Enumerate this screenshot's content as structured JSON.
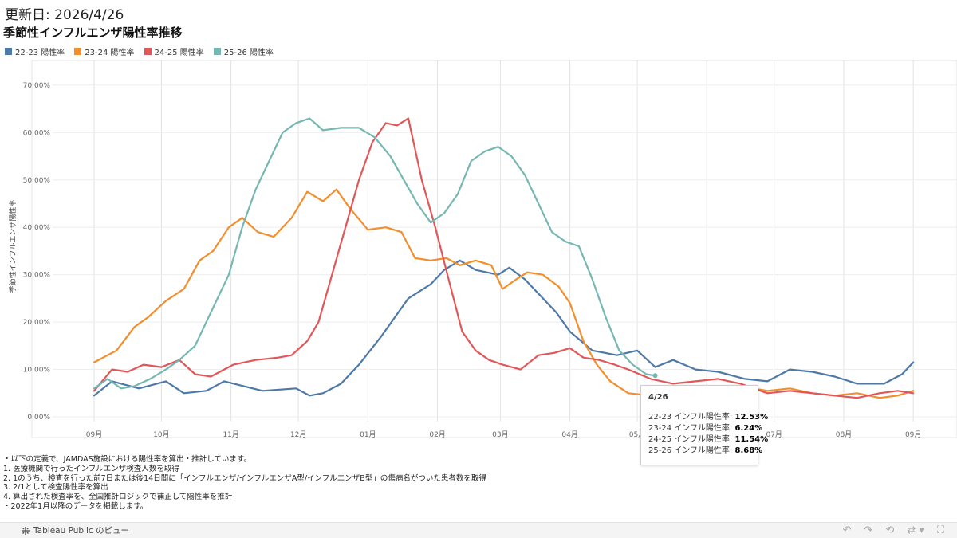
{
  "header": {
    "updated": "更新日: 2026/4/26",
    "title": "季節性インフルエンザ陽性率推移"
  },
  "legend": [
    {
      "label": "22-23 陽性率",
      "color": "#4e79a7"
    },
    {
      "label": "23-24 陽性率",
      "color": "#f28e2b"
    },
    {
      "label": "24-25 陽性率",
      "color": "#e15759"
    },
    {
      "label": "25-26 陽性率",
      "color": "#76b7b2"
    }
  ],
  "tooltip": {
    "date": "4/26",
    "rows": [
      {
        "label": "22-23 インフル陽性率: ",
        "value": "12.53%"
      },
      {
        "label": "23-24 インフル陽性率: ",
        "value": "6.24%"
      },
      {
        "label": "24-25 インフル陽性率: ",
        "value": "11.54%"
      },
      {
        "label": "25-26 インフル陽性率: ",
        "value": "8.68%"
      }
    ]
  },
  "notes": [
    "・以下の定義で、JAMDAS施設における陽性率を算出・推計しています。",
    "1. 医療機関で行ったインフルエンザ検査人数を取得",
    "2. 1のうち、検査を行った前7日または後14日間に「インフルエンザ/インフルエンザA型/インフルエンザB型」の傷病名がついた患者数を取得",
    "3. 2/1として検査陽性率を算出",
    "4. 算出された検査率を、全国推計ロジックで補正して陽性率を推計",
    "・2022年1月以降のデータを掲載します。"
  ],
  "footer": {
    "brand": "Tableau Public のビュー",
    "icons": [
      "undo-icon",
      "redo-icon",
      "revert-icon",
      "share-icon",
      "fullscreen-icon"
    ]
  },
  "chart_data": {
    "type": "line",
    "ylabel": "季節性インフルエンザ陽性率",
    "xlabel": "",
    "ylim": [
      0,
      72
    ],
    "yticks": [
      0,
      10,
      20,
      30,
      40,
      50,
      60,
      70
    ],
    "ytick_labels": [
      "0.00%",
      "10.00%",
      "20.00%",
      "30.00%",
      "40.00%",
      "50.00%",
      "60.00%",
      "70.00%"
    ],
    "xlim": [
      0,
      366
    ],
    "xtick_positions": [
      0,
      30,
      61,
      91,
      122,
      153,
      181,
      212,
      242,
      273,
      303,
      334,
      365
    ],
    "xtick_labels": [
      "09月",
      "10月",
      "11月",
      "12月",
      "01月",
      "02月",
      "03月",
      "04月",
      "05月",
      "06月",
      "07月",
      "08月",
      "09月"
    ],
    "x_axis_unit": "day of season starting 09/01",
    "grid": true,
    "legend_position": "top-left",
    "series": [
      {
        "name": "22-23 陽性率",
        "color": "#4e79a7",
        "points": [
          [
            0,
            4.5
          ],
          [
            8,
            7.5
          ],
          [
            20,
            6
          ],
          [
            32,
            7.5
          ],
          [
            40,
            5
          ],
          [
            50,
            5.5
          ],
          [
            58,
            7.5
          ],
          [
            75,
            5.5
          ],
          [
            90,
            6
          ],
          [
            96,
            4.5
          ],
          [
            102,
            5
          ],
          [
            110,
            7
          ],
          [
            118,
            11
          ],
          [
            128,
            17
          ],
          [
            140,
            25
          ],
          [
            150,
            28
          ],
          [
            156,
            31
          ],
          [
            163,
            33
          ],
          [
            170,
            31
          ],
          [
            180,
            30
          ],
          [
            185,
            31.5
          ],
          [
            192,
            29
          ],
          [
            200,
            25
          ],
          [
            206,
            22
          ],
          [
            212,
            18
          ],
          [
            222,
            14
          ],
          [
            233,
            13
          ],
          [
            242,
            14
          ],
          [
            250,
            10.5
          ],
          [
            258,
            12
          ],
          [
            268,
            10
          ],
          [
            278,
            9.5
          ],
          [
            290,
            8
          ],
          [
            300,
            7.5
          ],
          [
            310,
            10
          ],
          [
            320,
            9.5
          ],
          [
            330,
            8.5
          ],
          [
            340,
            7
          ],
          [
            352,
            7
          ],
          [
            360,
            9
          ],
          [
            365,
            11.5
          ]
        ]
      },
      {
        "name": "23-24 陽性率",
        "color": "#f28e2b",
        "points": [
          [
            0,
            11.5
          ],
          [
            10,
            14
          ],
          [
            18,
            19
          ],
          [
            24,
            21
          ],
          [
            32,
            24.5
          ],
          [
            40,
            27
          ],
          [
            47,
            33
          ],
          [
            53,
            35
          ],
          [
            60,
            40
          ],
          [
            66,
            42
          ],
          [
            73,
            39
          ],
          [
            80,
            38
          ],
          [
            88,
            42
          ],
          [
            95,
            47.5
          ],
          [
            102,
            45.5
          ],
          [
            108,
            48
          ],
          [
            114,
            44
          ],
          [
            122,
            39.5
          ],
          [
            130,
            40
          ],
          [
            137,
            39
          ],
          [
            143,
            33.5
          ],
          [
            150,
            33
          ],
          [
            157,
            33.5
          ],
          [
            163,
            32
          ],
          [
            170,
            33
          ],
          [
            177,
            32
          ],
          [
            182,
            27
          ],
          [
            188,
            29
          ],
          [
            193,
            30.5
          ],
          [
            200,
            30
          ],
          [
            207,
            27.5
          ],
          [
            212,
            24
          ],
          [
            218,
            16
          ],
          [
            224,
            11
          ],
          [
            230,
            7.5
          ],
          [
            238,
            5
          ],
          [
            248,
            4.5
          ],
          [
            258,
            5.5
          ],
          [
            268,
            5
          ],
          [
            278,
            6
          ],
          [
            288,
            6.5
          ],
          [
            300,
            5.5
          ],
          [
            310,
            6
          ],
          [
            320,
            5
          ],
          [
            330,
            4.5
          ],
          [
            340,
            5
          ],
          [
            350,
            4
          ],
          [
            358,
            4.5
          ],
          [
            365,
            5.5
          ]
        ]
      },
      {
        "name": "24-25 陽性率",
        "color": "#e15759",
        "points": [
          [
            0,
            5.5
          ],
          [
            8,
            10
          ],
          [
            15,
            9.5
          ],
          [
            22,
            11
          ],
          [
            30,
            10.5
          ],
          [
            38,
            12
          ],
          [
            45,
            9
          ],
          [
            52,
            8.5
          ],
          [
            62,
            11
          ],
          [
            72,
            12
          ],
          [
            82,
            12.5
          ],
          [
            88,
            13
          ],
          [
            95,
            16
          ],
          [
            100,
            20
          ],
          [
            106,
            30
          ],
          [
            112,
            40
          ],
          [
            118,
            50
          ],
          [
            124,
            58
          ],
          [
            130,
            62
          ],
          [
            135,
            61.5
          ],
          [
            140,
            63
          ],
          [
            146,
            50
          ],
          [
            152,
            40
          ],
          [
            158,
            29
          ],
          [
            164,
            18
          ],
          [
            170,
            14
          ],
          [
            176,
            12
          ],
          [
            182,
            11
          ],
          [
            190,
            10
          ],
          [
            198,
            13
          ],
          [
            205,
            13.5
          ],
          [
            212,
            14.5
          ],
          [
            218,
            12.5
          ],
          [
            225,
            12
          ],
          [
            232,
            11
          ],
          [
            238,
            10
          ],
          [
            248,
            8
          ],
          [
            258,
            7
          ],
          [
            268,
            7.5
          ],
          [
            278,
            8
          ],
          [
            288,
            7
          ],
          [
            300,
            5
          ],
          [
            310,
            5.5
          ],
          [
            320,
            5
          ],
          [
            330,
            4.5
          ],
          [
            340,
            4
          ],
          [
            350,
            5
          ],
          [
            358,
            5.5
          ],
          [
            365,
            5
          ]
        ]
      },
      {
        "name": "25-26 陽性率",
        "color": "#76b7b2",
        "points": [
          [
            0,
            6
          ],
          [
            6,
            8
          ],
          [
            12,
            6
          ],
          [
            18,
            6.5
          ],
          [
            25,
            8
          ],
          [
            32,
            10
          ],
          [
            38,
            12
          ],
          [
            45,
            15
          ],
          [
            52,
            22
          ],
          [
            60,
            30
          ],
          [
            66,
            40
          ],
          [
            72,
            48
          ],
          [
            78,
            54
          ],
          [
            84,
            60
          ],
          [
            90,
            62
          ],
          [
            96,
            63
          ],
          [
            102,
            60.5
          ],
          [
            110,
            61
          ],
          [
            118,
            61
          ],
          [
            125,
            59
          ],
          [
            132,
            55
          ],
          [
            138,
            50
          ],
          [
            144,
            45
          ],
          [
            150,
            41
          ],
          [
            156,
            43
          ],
          [
            162,
            47
          ],
          [
            168,
            54
          ],
          [
            174,
            56
          ],
          [
            180,
            57
          ],
          [
            186,
            55
          ],
          [
            192,
            51
          ],
          [
            198,
            45
          ],
          [
            204,
            39
          ],
          [
            210,
            37
          ],
          [
            216,
            36
          ],
          [
            222,
            29
          ],
          [
            228,
            21
          ],
          [
            234,
            14
          ],
          [
            240,
            11
          ],
          [
            246,
            9
          ],
          [
            250,
            8.7
          ]
        ]
      }
    ]
  }
}
